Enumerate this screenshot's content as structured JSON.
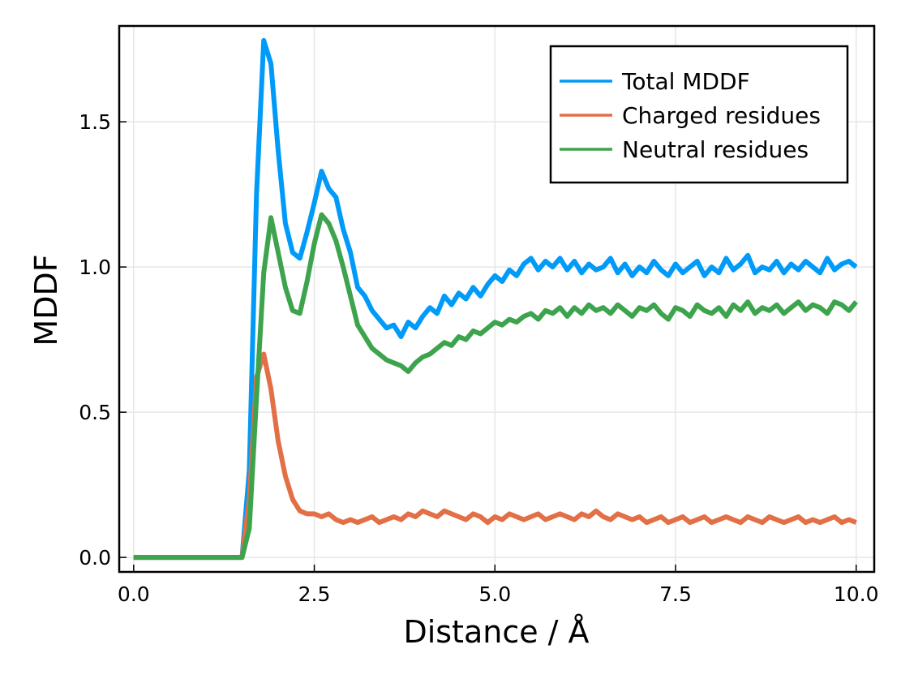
{
  "chart_data": {
    "type": "line",
    "title": "",
    "xlabel": "Distance / Å",
    "ylabel": "MDDF",
    "xlim": [
      -0.2,
      10.25
    ],
    "ylim": [
      -0.05,
      1.83
    ],
    "xticks": [
      0,
      2.5,
      5,
      7.5,
      10
    ],
    "xtick_labels": [
      "0.0",
      "2.5",
      "5.0",
      "7.5",
      "10.0"
    ],
    "yticks": [
      0,
      0.5,
      1,
      1.5
    ],
    "ytick_labels": [
      "0.0",
      "0.5",
      "1.0",
      "1.5"
    ],
    "grid": true,
    "legend_position": "top-right",
    "x": [
      0,
      1.4,
      1.5,
      1.6,
      1.7,
      1.8,
      1.9,
      2.0,
      2.1,
      2.2,
      2.3,
      2.4,
      2.5,
      2.6,
      2.7,
      2.8,
      2.9,
      3.0,
      3.1,
      3.2,
      3.3,
      3.4,
      3.5,
      3.6,
      3.7,
      3.8,
      3.9,
      4.0,
      4.1,
      4.2,
      4.3,
      4.4,
      4.5,
      4.6,
      4.7,
      4.8,
      4.9,
      5.0,
      5.1,
      5.2,
      5.3,
      5.4,
      5.5,
      5.6,
      5.7,
      5.8,
      5.9,
      6.0,
      6.1,
      6.2,
      6.3,
      6.4,
      6.5,
      6.6,
      6.7,
      6.8,
      6.9,
      7.0,
      7.1,
      7.2,
      7.3,
      7.4,
      7.5,
      7.6,
      7.7,
      7.8,
      7.9,
      8.0,
      8.1,
      8.2,
      8.3,
      8.4,
      8.5,
      8.6,
      8.7,
      8.8,
      8.9,
      9.0,
      9.1,
      9.2,
      9.3,
      9.4,
      9.5,
      9.6,
      9.7,
      9.8,
      9.9,
      10.0
    ],
    "series": [
      {
        "name": "Total MDDF",
        "color": "#009af9",
        "values": [
          0,
          0,
          0,
          0.3,
          1.25,
          1.78,
          1.7,
          1.4,
          1.15,
          1.05,
          1.03,
          1.12,
          1.22,
          1.33,
          1.27,
          1.24,
          1.13,
          1.05,
          0.93,
          0.9,
          0.85,
          0.82,
          0.79,
          0.8,
          0.76,
          0.81,
          0.79,
          0.83,
          0.86,
          0.84,
          0.9,
          0.87,
          0.91,
          0.89,
          0.93,
          0.9,
          0.94,
          0.97,
          0.95,
          0.99,
          0.97,
          1.01,
          1.03,
          0.99,
          1.02,
          1.0,
          1.03,
          0.99,
          1.02,
          0.98,
          1.01,
          0.99,
          1.0,
          1.03,
          0.98,
          1.01,
          0.97,
          1.0,
          0.98,
          1.02,
          0.99,
          0.97,
          1.01,
          0.98,
          1.0,
          1.02,
          0.97,
          1.0,
          0.98,
          1.03,
          0.99,
          1.01,
          1.04,
          0.98,
          1.0,
          0.99,
          1.02,
          0.98,
          1.01,
          0.99,
          1.02,
          1.0,
          0.98,
          1.03,
          0.99,
          1.01,
          1.02,
          1.0
        ]
      },
      {
        "name": "Charged residues",
        "color": "#e26f46",
        "values": [
          0,
          0,
          0,
          0.2,
          0.62,
          0.7,
          0.58,
          0.4,
          0.28,
          0.2,
          0.16,
          0.15,
          0.15,
          0.14,
          0.15,
          0.13,
          0.12,
          0.13,
          0.12,
          0.13,
          0.14,
          0.12,
          0.13,
          0.14,
          0.13,
          0.15,
          0.14,
          0.16,
          0.15,
          0.14,
          0.16,
          0.15,
          0.14,
          0.13,
          0.15,
          0.14,
          0.12,
          0.14,
          0.13,
          0.15,
          0.14,
          0.13,
          0.14,
          0.15,
          0.13,
          0.14,
          0.15,
          0.14,
          0.13,
          0.15,
          0.14,
          0.16,
          0.14,
          0.13,
          0.15,
          0.14,
          0.13,
          0.14,
          0.12,
          0.13,
          0.14,
          0.12,
          0.13,
          0.14,
          0.12,
          0.13,
          0.14,
          0.12,
          0.13,
          0.14,
          0.13,
          0.12,
          0.14,
          0.13,
          0.12,
          0.14,
          0.13,
          0.12,
          0.13,
          0.14,
          0.12,
          0.13,
          0.12,
          0.13,
          0.14,
          0.12,
          0.13,
          0.12
        ]
      },
      {
        "name": "Neutral residues",
        "color": "#3da44d",
        "values": [
          0,
          0,
          0,
          0.1,
          0.55,
          0.98,
          1.17,
          1.05,
          0.93,
          0.85,
          0.84,
          0.95,
          1.08,
          1.18,
          1.15,
          1.09,
          1.0,
          0.9,
          0.8,
          0.76,
          0.72,
          0.7,
          0.68,
          0.67,
          0.66,
          0.64,
          0.67,
          0.69,
          0.7,
          0.72,
          0.74,
          0.73,
          0.76,
          0.75,
          0.78,
          0.77,
          0.79,
          0.81,
          0.8,
          0.82,
          0.81,
          0.83,
          0.84,
          0.82,
          0.85,
          0.84,
          0.86,
          0.83,
          0.86,
          0.84,
          0.87,
          0.85,
          0.86,
          0.84,
          0.87,
          0.85,
          0.83,
          0.86,
          0.85,
          0.87,
          0.84,
          0.82,
          0.86,
          0.85,
          0.83,
          0.87,
          0.85,
          0.84,
          0.86,
          0.83,
          0.87,
          0.85,
          0.88,
          0.84,
          0.86,
          0.85,
          0.87,
          0.84,
          0.86,
          0.88,
          0.85,
          0.87,
          0.86,
          0.84,
          0.88,
          0.87,
          0.85,
          0.88
        ]
      }
    ]
  }
}
